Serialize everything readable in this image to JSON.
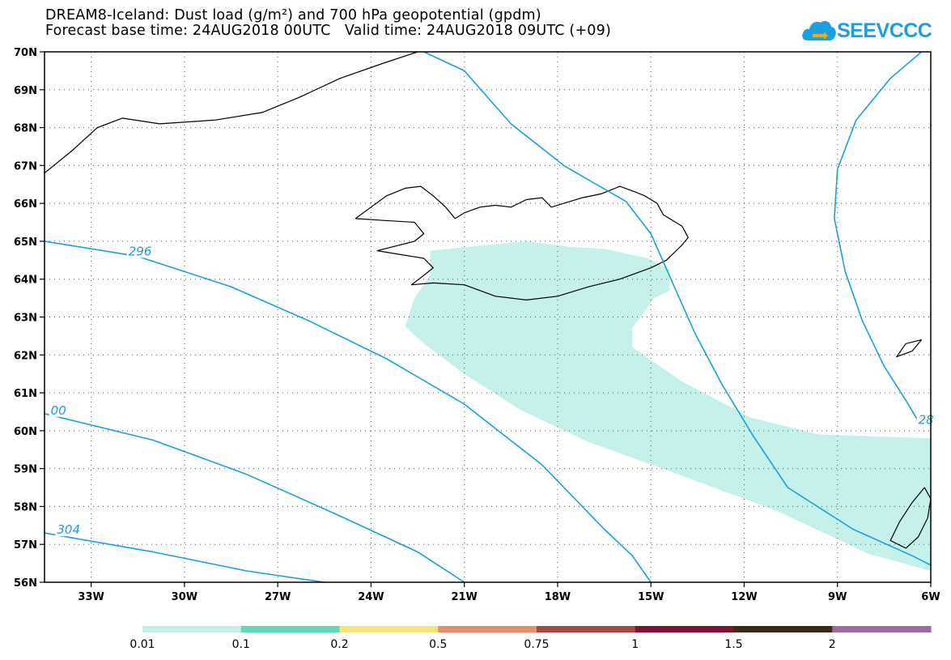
{
  "title": {
    "line1": "DREAM8-Iceland: Dust load (g/m²) and 700 hPa geopotential (gpdm)",
    "line2_base": "Forecast base time: 24AUG2018 00UTC",
    "line2_valid": "Valid time: 24AUG2018 09UTC (+09)"
  },
  "logo": {
    "text": "SEEVCCC",
    "icon": "cloud-arrow-icon",
    "color": "#1a9fe0"
  },
  "map": {
    "projection": "lat-lon",
    "lon_range": [
      -34.5,
      -6
    ],
    "lat_range": [
      56,
      70
    ],
    "lon_ticks": [
      {
        "value": -33,
        "label": "33W"
      },
      {
        "value": -30,
        "label": "30W"
      },
      {
        "value": -27,
        "label": "27W"
      },
      {
        "value": -24,
        "label": "24W"
      },
      {
        "value": -21,
        "label": "21W"
      },
      {
        "value": -18,
        "label": "18W"
      },
      {
        "value": -15,
        "label": "15W"
      },
      {
        "value": -12,
        "label": "12W"
      },
      {
        "value": -9,
        "label": "9W"
      },
      {
        "value": -6,
        "label": "6W"
      }
    ],
    "lat_ticks": [
      {
        "value": 70,
        "label": "70N"
      },
      {
        "value": 69,
        "label": "69N"
      },
      {
        "value": 68,
        "label": "68N"
      },
      {
        "value": 67,
        "label": "67N"
      },
      {
        "value": 66,
        "label": "66N"
      },
      {
        "value": 65,
        "label": "65N"
      },
      {
        "value": 64,
        "label": "64N"
      },
      {
        "value": 63,
        "label": "63N"
      },
      {
        "value": 62,
        "label": "62N"
      },
      {
        "value": 61,
        "label": "61N"
      },
      {
        "value": 60,
        "label": "60N"
      },
      {
        "value": 59,
        "label": "59N"
      },
      {
        "value": 58,
        "label": "58N"
      },
      {
        "value": 57,
        "label": "57N"
      },
      {
        "value": 56,
        "label": "56N"
      }
    ],
    "gridlines": true,
    "contour_color": "#1a9fe0",
    "coast_color": "#000000",
    "dust_color": "#c6f0ea",
    "contour_labels": [
      {
        "text": "296",
        "lon": -31.8,
        "lat": 64.65
      },
      {
        "text": "00",
        "lon": -34.3,
        "lat": 60.45
      },
      {
        "text": "304",
        "lon": -34.1,
        "lat": 57.3
      },
      {
        "text": "28",
        "lon": -6.4,
        "lat": 60.2
      }
    ],
    "contours": [
      [
        [
          -34.5,
          65.0
        ],
        [
          -31.5,
          64.6
        ],
        [
          -28.5,
          63.8
        ],
        [
          -26,
          62.9
        ],
        [
          -23.5,
          61.9
        ],
        [
          -21,
          60.7
        ],
        [
          -18.5,
          59.1
        ],
        [
          -16.5,
          57.4
        ],
        [
          -15.6,
          56.7
        ],
        [
          -15,
          56.0
        ]
      ],
      [
        [
          -34.5,
          60.45
        ],
        [
          -31,
          59.75
        ],
        [
          -28,
          58.85
        ],
        [
          -25,
          57.75
        ],
        [
          -22.5,
          56.8
        ],
        [
          -21,
          56.0
        ]
      ],
      [
        [
          -34.5,
          57.3
        ],
        [
          -31,
          56.8
        ],
        [
          -28,
          56.3
        ],
        [
          -25.5,
          56.0
        ]
      ],
      [
        [
          -22.3,
          70.0
        ],
        [
          -21,
          69.5
        ],
        [
          -19.5,
          68.1
        ],
        [
          -17.8,
          67.0
        ],
        [
          -15.8,
          66.05
        ],
        [
          -15.0,
          65.2
        ],
        [
          -14.3,
          63.9
        ],
        [
          -13.6,
          62.6
        ],
        [
          -12.7,
          61.2
        ],
        [
          -11.7,
          59.85
        ],
        [
          -10.6,
          58.5
        ],
        [
          -8.5,
          57.4
        ],
        [
          -6.6,
          56.7
        ],
        [
          -6.0,
          56.45
        ]
      ],
      [
        [
          -6.3,
          70.0
        ],
        [
          -7.3,
          69.3
        ],
        [
          -8.4,
          68.2
        ],
        [
          -9.0,
          66.9
        ],
        [
          -9.1,
          65.6
        ],
        [
          -8.75,
          64.2
        ],
        [
          -8.2,
          62.9
        ],
        [
          -7.5,
          61.7
        ],
        [
          -6.8,
          60.8
        ],
        [
          -6.4,
          60.25
        ]
      ]
    ],
    "dust_plume": [
      [
        -22.1,
        64.75
      ],
      [
        -20.3,
        64.9
      ],
      [
        -19.0,
        65.0
      ],
      [
        -17.6,
        64.85
      ],
      [
        -16.5,
        64.8
      ],
      [
        -15.1,
        64.55
      ],
      [
        -14.4,
        64.25
      ],
      [
        -14.4,
        63.7
      ],
      [
        -14.9,
        63.5
      ],
      [
        -15.6,
        62.7
      ],
      [
        -15.6,
        62.2
      ],
      [
        -14.0,
        61.3
      ],
      [
        -11.8,
        60.35
      ],
      [
        -9.6,
        59.9
      ],
      [
        -6.0,
        59.8
      ],
      [
        -6.0,
        56.3
      ],
      [
        -8.0,
        56.75
      ],
      [
        -11.0,
        57.9
      ],
      [
        -14.3,
        58.9
      ],
      [
        -17.0,
        59.7
      ],
      [
        -19.2,
        60.55
      ],
      [
        -21.0,
        61.5
      ],
      [
        -22.3,
        62.3
      ],
      [
        -22.9,
        62.75
      ],
      [
        -22.6,
        63.5
      ],
      [
        -22.1,
        64.1
      ]
    ],
    "coastlines": [
      [
        [
          -24.5,
          65.6
        ],
        [
          -24.0,
          65.9
        ],
        [
          -23.5,
          66.2
        ],
        [
          -22.9,
          66.4
        ],
        [
          -22.4,
          66.45
        ],
        [
          -22.0,
          66.2
        ],
        [
          -21.6,
          65.9
        ],
        [
          -21.3,
          65.6
        ],
        [
          -21.0,
          65.75
        ],
        [
          -20.5,
          65.9
        ],
        [
          -20.0,
          65.95
        ],
        [
          -19.5,
          65.9
        ],
        [
          -19.0,
          66.1
        ],
        [
          -18.5,
          66.15
        ],
        [
          -18.2,
          65.9
        ],
        [
          -17.8,
          66.0
        ],
        [
          -17.2,
          66.15
        ],
        [
          -16.6,
          66.25
        ],
        [
          -16.0,
          66.45
        ],
        [
          -15.5,
          66.3
        ],
        [
          -15.2,
          66.2
        ],
        [
          -14.8,
          66.0
        ],
        [
          -14.6,
          65.7
        ],
        [
          -14.0,
          65.4
        ],
        [
          -13.8,
          65.1
        ],
        [
          -14.0,
          64.9
        ],
        [
          -14.5,
          64.5
        ],
        [
          -15.0,
          64.3
        ],
        [
          -16.0,
          64.0
        ],
        [
          -17.0,
          63.8
        ],
        [
          -18.0,
          63.55
        ],
        [
          -19.0,
          63.45
        ],
        [
          -20.0,
          63.55
        ],
        [
          -21.0,
          63.85
        ],
        [
          -22.0,
          63.9
        ],
        [
          -22.7,
          63.85
        ],
        [
          -22.3,
          64.1
        ],
        [
          -22.0,
          64.3
        ],
        [
          -22.3,
          64.55
        ],
        [
          -23.8,
          64.75
        ],
        [
          -22.6,
          65.0
        ],
        [
          -22.3,
          65.2
        ],
        [
          -22.6,
          65.5
        ],
        [
          -23.6,
          65.55
        ],
        [
          -24.5,
          65.6
        ]
      ],
      [
        [
          -34.5,
          66.8
        ],
        [
          -33.6,
          67.4
        ],
        [
          -32.8,
          68.0
        ],
        [
          -32.0,
          68.25
        ],
        [
          -30.8,
          68.1
        ],
        [
          -29.0,
          68.2
        ],
        [
          -27.5,
          68.4
        ],
        [
          -26.3,
          68.8
        ],
        [
          -25.0,
          69.3
        ],
        [
          -23.6,
          69.7
        ],
        [
          -22.5,
          70.0
        ]
      ],
      [
        [
          -6.8,
          62.3
        ],
        [
          -6.3,
          62.4
        ],
        [
          -6.6,
          62.1
        ],
        [
          -7.1,
          61.95
        ],
        [
          -6.8,
          62.3
        ]
      ],
      [
        [
          -6.2,
          58.5
        ],
        [
          -6.6,
          58.1
        ],
        [
          -7.0,
          57.6
        ],
        [
          -7.3,
          57.1
        ],
        [
          -6.8,
          56.9
        ],
        [
          -6.4,
          57.2
        ],
        [
          -6.1,
          57.7
        ],
        [
          -6.0,
          58.2
        ],
        [
          -6.2,
          58.5
        ]
      ]
    ]
  },
  "legend": {
    "segments": [
      {
        "color": "#c6f0ea"
      },
      {
        "color": "#5fdcb0"
      },
      {
        "color": "#f7e47a"
      },
      {
        "color": "#e88c6a"
      },
      {
        "color": "#a5493c"
      },
      {
        "color": "#7e1230"
      },
      {
        "color": "#3c2a15"
      },
      {
        "color": "#9c6c9c"
      }
    ],
    "labels": [
      "0.01",
      "0.1",
      "0.2",
      "0.5",
      "0.75",
      "1",
      "1.5",
      "2"
    ]
  }
}
